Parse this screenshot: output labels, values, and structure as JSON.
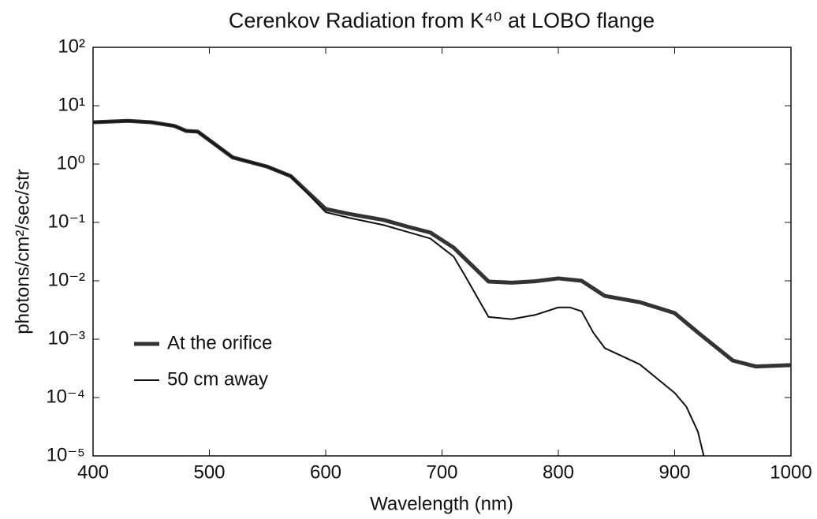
{
  "chart_data": {
    "type": "line",
    "title": "Cerenkov Radiation from K⁴⁰ at LOBO flange",
    "xlabel": "Wavelength (nm)",
    "ylabel": "photons/cm²/sec/str",
    "xlim": [
      400,
      1000
    ],
    "xticks": [
      400,
      500,
      600,
      700,
      800,
      900,
      1000
    ],
    "ylim": [
      1e-05,
      100
    ],
    "yscale": "log",
    "yticks": [
      {
        "value": 1e-05,
        "label": "10⁻⁵"
      },
      {
        "value": 0.0001,
        "label": "10⁻⁴"
      },
      {
        "value": 0.001,
        "label": "10⁻³"
      },
      {
        "value": 0.01,
        "label": "10⁻²"
      },
      {
        "value": 0.1,
        "label": "10⁻¹"
      },
      {
        "value": 1,
        "label": "10⁰"
      },
      {
        "value": 10,
        "label": "10¹"
      },
      {
        "value": 100,
        "label": "10²"
      }
    ],
    "legend": "lower left",
    "series": [
      {
        "name": "At the orifice",
        "color": "#333333",
        "width": 5,
        "x": [
          400,
          430,
          450,
          470,
          480,
          490,
          520,
          550,
          570,
          600,
          620,
          650,
          670,
          690,
          710,
          740,
          760,
          780,
          800,
          820,
          840,
          870,
          900,
          920,
          950,
          970,
          1000
        ],
        "values": [
          5.2,
          5.5,
          5.2,
          4.5,
          3.7,
          3.6,
          1.3,
          0.9,
          0.62,
          0.17,
          0.14,
          0.11,
          0.085,
          0.067,
          0.037,
          0.0097,
          0.0093,
          0.0098,
          0.011,
          0.01,
          0.0055,
          0.0043,
          0.0028,
          0.0013,
          0.00043,
          0.00034,
          0.00036
        ]
      },
      {
        "name": "50 cm away",
        "color": "#111111",
        "width": 2,
        "x": [
          400,
          430,
          450,
          470,
          480,
          490,
          520,
          550,
          570,
          600,
          620,
          650,
          690,
          710,
          720,
          740,
          760,
          780,
          800,
          810,
          820,
          830,
          840,
          870,
          900,
          910,
          920,
          925
        ],
        "values": [
          5.2,
          5.5,
          5.2,
          4.5,
          3.7,
          3.6,
          1.3,
          0.9,
          0.62,
          0.15,
          0.12,
          0.09,
          0.053,
          0.026,
          0.012,
          0.0024,
          0.0022,
          0.0026,
          0.0035,
          0.0035,
          0.003,
          0.0013,
          0.0007,
          0.00037,
          0.00012,
          7e-05,
          2.6e-05,
          1e-05
        ]
      }
    ]
  }
}
